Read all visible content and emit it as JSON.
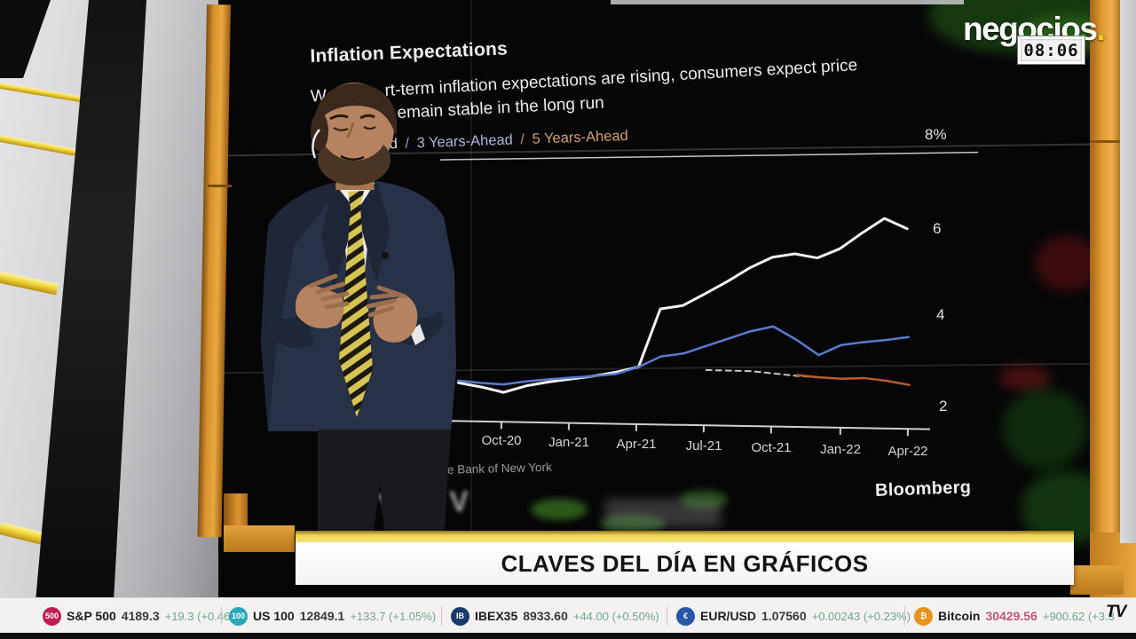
{
  "channel": {
    "logo_text": "negocios",
    "logo_dot": ".",
    "clock": "08:06",
    "tv_badge": "TV"
  },
  "chart_data": {
    "type": "line",
    "title": "Inflation Expectations",
    "subtitle_fragments": {
      "line1_prefix": "W",
      "line1": "rt-term inflation expectations are rising, consumers expect price",
      "line2": "emain stable in the long run"
    },
    "legend": [
      {
        "fragment": "ead",
        "color": "#d8d8d8"
      },
      {
        "separator": "/",
        "color": "#8ea2cc"
      },
      {
        "label": "3 Years-Ahead",
        "color": "#aab8dc"
      },
      {
        "separator2": "/",
        "color": "#c08a58"
      },
      {
        "label2": "5 Years-Ahead",
        "color": "#d0a070"
      }
    ],
    "x_tick_labels": [
      "Oct-20",
      "Jan-21",
      "Apr-21",
      "Jul-21",
      "Oct-21",
      "Jan-22",
      "Apr-22"
    ],
    "x_partial_tick": "0",
    "y_tick_labels": [
      "8%",
      "6",
      "4",
      "2"
    ],
    "y_axis": {
      "unit": "%",
      "ticks": [
        8,
        6,
        4,
        2
      ],
      "top_gridline": 8
    },
    "series": [
      {
        "name": "1 Year-Ahead",
        "color": "#f2f2f0",
        "width": 3,
        "start_index": 0,
        "values": [
          2.65,
          2.55,
          2.42,
          2.56,
          2.64,
          2.7,
          2.76,
          2.84,
          2.95,
          4.25,
          4.32,
          4.58,
          4.85,
          5.15,
          5.38,
          5.45,
          5.35,
          5.55,
          5.9,
          6.22,
          5.98
        ]
      },
      {
        "name": "3 Years-Ahead",
        "color": "#5a7bd0",
        "width": 2.5,
        "start_index": 0,
        "values": [
          2.7,
          2.64,
          2.6,
          2.66,
          2.7,
          2.73,
          2.76,
          2.8,
          2.95,
          3.18,
          3.24,
          3.4,
          3.56,
          3.72,
          3.82,
          3.52,
          3.16,
          3.38,
          3.44,
          3.48,
          3.54
        ]
      },
      {
        "name": "5 Years-Ahead (dashed segment)",
        "color": "#c8c8c8",
        "width": 2,
        "dash": "6 5",
        "start_index": 11,
        "values": [
          2.86,
          2.84,
          2.82,
          2.76,
          2.7,
          2.66
        ]
      },
      {
        "name": "5 Years-Ahead",
        "color": "#b85c28",
        "width": 2.5,
        "start_index": 15,
        "values": [
          2.72,
          2.66,
          2.62,
          2.63,
          2.56,
          2.46
        ]
      }
    ],
    "source_fragment": "ve Bank of New York",
    "credit": "Bloomberg",
    "wall_glyph_fragment": "Y V"
  },
  "banner": {
    "text": "CLAVES DEL DÍA EN GRÁFICOS"
  },
  "ticker": {
    "items": [
      {
        "icon": "500",
        "icon_bg": "#c01f52",
        "name": "S&P 500",
        "price": "4189.3",
        "change": "+19.3 (+0.46%)"
      },
      {
        "icon": "100",
        "icon_bg": "#28a9ba",
        "name": "US 100",
        "price": "12849.1",
        "change": "+133.7 (+1.05%)"
      },
      {
        "icon": "IB",
        "icon_bg": "#1a3a6b",
        "name": "IBEX35",
        "price": "8933.60",
        "change": "+44.00 (+0.50%)"
      },
      {
        "icon": "€",
        "icon_bg": "#2858a8",
        "name": "EUR/USD",
        "price": "1.07560",
        "change": "+0.00243 (+0.23%)"
      },
      {
        "icon": "₿",
        "icon_bg": "#e8941a",
        "name": "Bitcoin",
        "price": "30429.56",
        "price_color": "#c05878",
        "change": "+900.62 (+3.3"
      }
    ],
    "change_color": "#6fa78b"
  }
}
